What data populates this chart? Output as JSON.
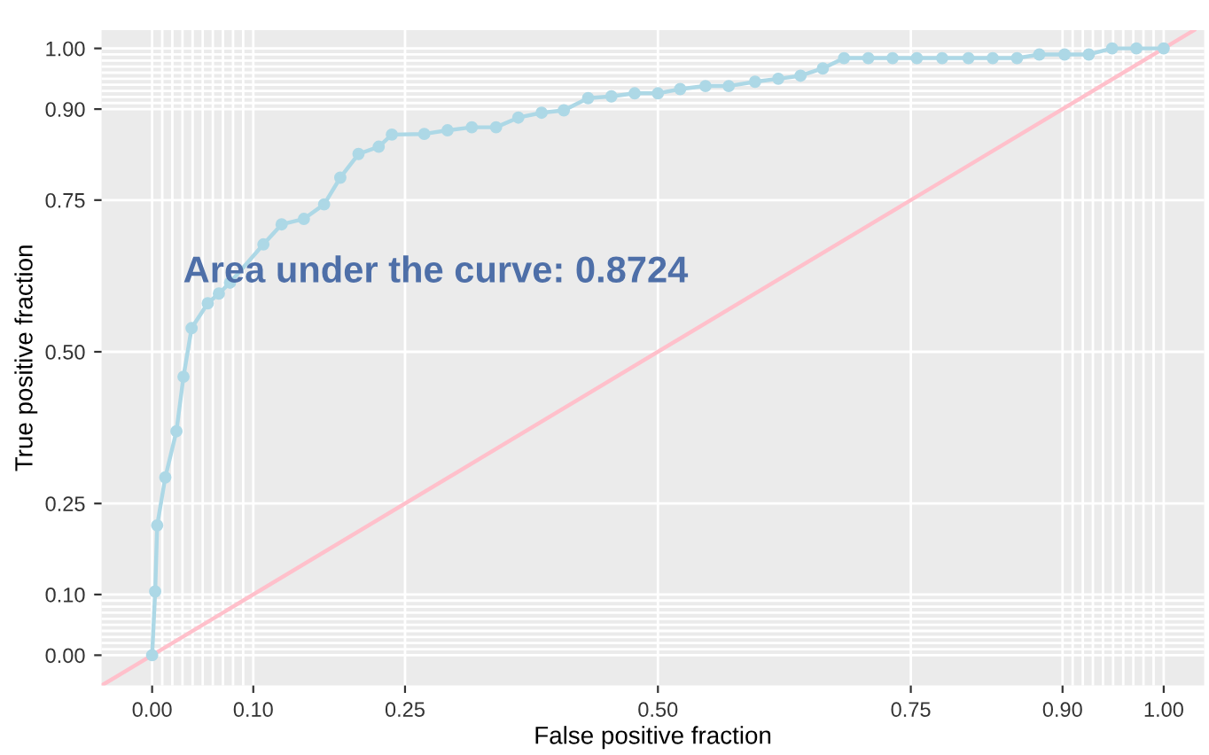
{
  "chart_data": {
    "type": "line",
    "xlabel": "False positive fraction",
    "ylabel": "True positive fraction",
    "annotations": [
      "Area under the curve: 0.8724"
    ],
    "series": [
      {
        "color": "#add8e6",
        "marker": "circle",
        "x": [
          0,
          0.003,
          0.005,
          0.013,
          0.024,
          0.031,
          0.039,
          0.055,
          0.066,
          0.077,
          0.11,
          0.128,
          0.15,
          0.17,
          0.186,
          0.204,
          0.224,
          0.237,
          0.269,
          0.292,
          0.316,
          0.34,
          0.362,
          0.385,
          0.407,
          0.431,
          0.454,
          0.477,
          0.5,
          0.522,
          0.547,
          0.57,
          0.596,
          0.619,
          0.641,
          0.663,
          0.684,
          0.708,
          0.732,
          0.756,
          0.781,
          0.807,
          0.831,
          0.855,
          0.877,
          0.902,
          0.926,
          0.949,
          0.973,
          1.0
        ],
        "values": [
          0,
          0.105,
          0.214,
          0.293,
          0.369,
          0.459,
          0.539,
          0.58,
          0.596,
          0.614,
          0.677,
          0.71,
          0.719,
          0.743,
          0.787,
          0.826,
          0.838,
          0.858,
          0.859,
          0.865,
          0.87,
          0.87,
          0.886,
          0.894,
          0.898,
          0.918,
          0.921,
          0.926,
          0.926,
          0.933,
          0.938,
          0.938,
          0.945,
          0.95,
          0.955,
          0.967,
          0.984,
          0.984,
          0.984,
          0.984,
          0.984,
          0.984,
          0.984,
          0.984,
          0.99,
          0.99,
          0.99,
          1.0,
          1.0,
          1.0
        ]
      },
      {
        "color": "#ffc0cb",
        "marker": "none",
        "x": [
          -0.05,
          1.03
        ],
        "values": [
          -0.05,
          1.03
        ]
      }
    ],
    "xlim": [
      -0.05,
      1.04
    ],
    "ylim": [
      -0.05,
      1.03
    ],
    "xticks": [
      {
        "value": 0,
        "label": "0.00"
      },
      {
        "value": 0.01,
        "label": null
      },
      {
        "value": 0.02,
        "label": null
      },
      {
        "value": 0.03,
        "label": null
      },
      {
        "value": 0.04,
        "label": null
      },
      {
        "value": 0.05,
        "label": null
      },
      {
        "value": 0.06,
        "label": null
      },
      {
        "value": 0.07,
        "label": null
      },
      {
        "value": 0.08,
        "label": null
      },
      {
        "value": 0.09,
        "label": null
      },
      {
        "value": 0.1,
        "label": "0.10"
      },
      {
        "value": 0.25,
        "label": "0.25"
      },
      {
        "value": 0.5,
        "label": "0.50"
      },
      {
        "value": 0.75,
        "label": "0.75"
      },
      {
        "value": 0.9,
        "label": "0.90"
      },
      {
        "value": 0.91,
        "label": null
      },
      {
        "value": 0.92,
        "label": null
      },
      {
        "value": 0.93,
        "label": null
      },
      {
        "value": 0.94,
        "label": null
      },
      {
        "value": 0.95,
        "label": null
      },
      {
        "value": 0.96,
        "label": null
      },
      {
        "value": 0.97,
        "label": null
      },
      {
        "value": 0.98,
        "label": null
      },
      {
        "value": 0.99,
        "label": null
      },
      {
        "value": 1,
        "label": "1.00"
      }
    ],
    "yticks": [
      {
        "value": 0,
        "label": "0.00"
      },
      {
        "value": 0.01,
        "label": null
      },
      {
        "value": 0.02,
        "label": null
      },
      {
        "value": 0.03,
        "label": null
      },
      {
        "value": 0.04,
        "label": null
      },
      {
        "value": 0.05,
        "label": null
      },
      {
        "value": 0.06,
        "label": null
      },
      {
        "value": 0.07,
        "label": null
      },
      {
        "value": 0.08,
        "label": null
      },
      {
        "value": 0.09,
        "label": null
      },
      {
        "value": 0.1,
        "label": "0.10"
      },
      {
        "value": 0.25,
        "label": "0.25"
      },
      {
        "value": 0.5,
        "label": "0.50"
      },
      {
        "value": 0.75,
        "label": "0.75"
      },
      {
        "value": 0.9,
        "label": "0.90"
      },
      {
        "value": 0.91,
        "label": null
      },
      {
        "value": 0.92,
        "label": null
      },
      {
        "value": 0.93,
        "label": null
      },
      {
        "value": 0.94,
        "label": null
      },
      {
        "value": 0.95,
        "label": null
      },
      {
        "value": 0.96,
        "label": null
      },
      {
        "value": 0.97,
        "label": null
      },
      {
        "value": 0.98,
        "label": null
      },
      {
        "value": 0.99,
        "label": null
      },
      {
        "value": 1,
        "label": "1.00"
      }
    ],
    "grid": true,
    "legend": false
  }
}
